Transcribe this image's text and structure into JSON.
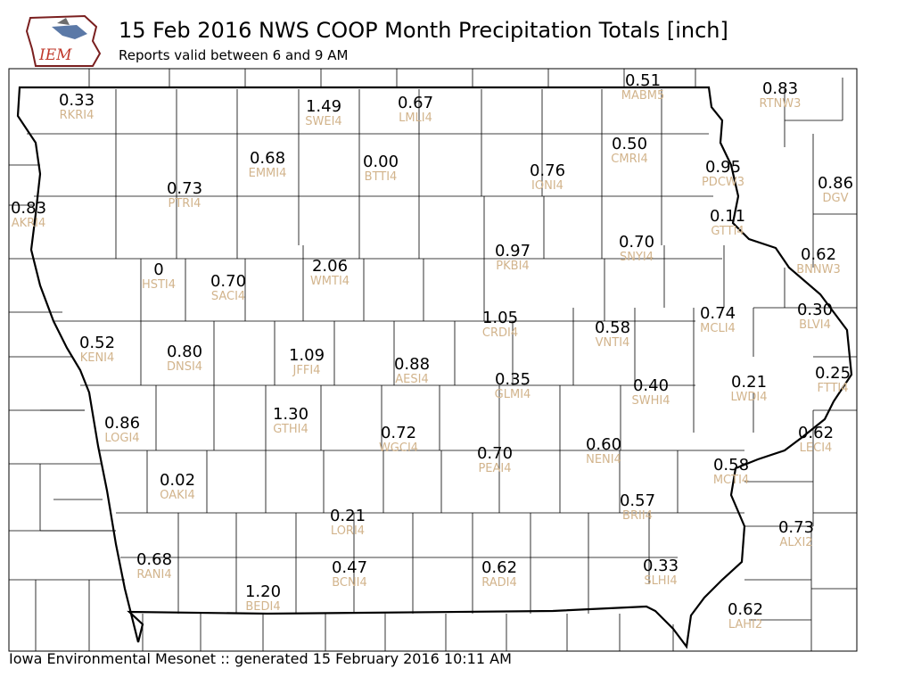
{
  "header": {
    "title": "15 Feb 2016 NWS COOP Month Precipitation Totals [inch]",
    "subtitle": "Reports valid between 6 and 9 AM"
  },
  "logo": {
    "text": "IEM",
    "icon": "iem-iowa-logo"
  },
  "footer": {
    "text": "Iowa Environmental Mesonet :: generated 15 February 2016 10:11 AM"
  },
  "colors": {
    "value_text": "#000000",
    "station_text": "#d2b48c",
    "border": "#000000"
  },
  "stations": [
    {
      "id": "RKRI4",
      "value": "0.33"
    },
    {
      "id": "SWEI4",
      "value": "1.49"
    },
    {
      "id": "LMLI4",
      "value": "0.67"
    },
    {
      "id": "MABM5",
      "value": "0.51"
    },
    {
      "id": "RTNW3",
      "value": "0.83"
    },
    {
      "id": "EMMI4",
      "value": "0.68"
    },
    {
      "id": "BTTI4",
      "value": "0.00"
    },
    {
      "id": "CMRI4",
      "value": "0.50"
    },
    {
      "id": "IONI4",
      "value": "0.76"
    },
    {
      "id": "PDCW3",
      "value": "0.95"
    },
    {
      "id": "DGV",
      "value": "0.86"
    },
    {
      "id": "PTRI4",
      "value": "0.73"
    },
    {
      "id": "AKRI4",
      "value": "0.83"
    },
    {
      "id": "GTTI4",
      "value": "0.11"
    },
    {
      "id": "SNYI4",
      "value": "0.70"
    },
    {
      "id": "PKBI4",
      "value": "0.97"
    },
    {
      "id": "BNNW3",
      "value": "0.62"
    },
    {
      "id": "HSTI4",
      "value": "0"
    },
    {
      "id": "SACI4",
      "value": "0.70"
    },
    {
      "id": "WMTI4",
      "value": "2.06"
    },
    {
      "id": "CRDI4",
      "value": "1.05"
    },
    {
      "id": "VNTI4",
      "value": "0.58"
    },
    {
      "id": "MCLI4",
      "value": "0.74"
    },
    {
      "id": "BLVI4",
      "value": "0.30"
    },
    {
      "id": "KENI4",
      "value": "0.52"
    },
    {
      "id": "DNSI4",
      "value": "0.80"
    },
    {
      "id": "JFFI4",
      "value": "1.09"
    },
    {
      "id": "AESI4",
      "value": "0.88"
    },
    {
      "id": "GLMI4",
      "value": "0.35"
    },
    {
      "id": "SWHI4",
      "value": "0.40"
    },
    {
      "id": "LWDI4",
      "value": "0.21"
    },
    {
      "id": "FTTI4",
      "value": "0.25"
    },
    {
      "id": "LOGI4",
      "value": "0.86"
    },
    {
      "id": "GTHI4",
      "value": "1.30"
    },
    {
      "id": "WGCI4",
      "value": "0.72"
    },
    {
      "id": "PEAI4",
      "value": "0.70"
    },
    {
      "id": "NENI4",
      "value": "0.60"
    },
    {
      "id": "LECI4",
      "value": "0.62"
    },
    {
      "id": "MCTI4",
      "value": "0.58"
    },
    {
      "id": "OAKI4",
      "value": "0.02"
    },
    {
      "id": "LORI4",
      "value": "0.21"
    },
    {
      "id": "BRII4",
      "value": "0.57"
    },
    {
      "id": "ALXI2",
      "value": "0.73"
    },
    {
      "id": "RANI4",
      "value": "0.68"
    },
    {
      "id": "BCNI4",
      "value": "0.47"
    },
    {
      "id": "RADI4",
      "value": "0.62"
    },
    {
      "id": "SLHI4",
      "value": "0.33"
    },
    {
      "id": "BEDI4",
      "value": "1.20"
    },
    {
      "id": "LAHI2",
      "value": "0.62"
    }
  ]
}
